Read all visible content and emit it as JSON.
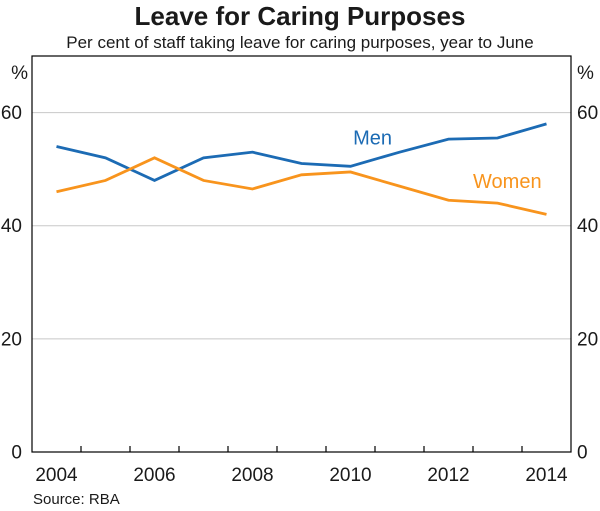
{
  "chart_data": {
    "type": "line",
    "title": "Leave for Caring Purposes",
    "subtitle": "Per cent of staff taking leave for caring purposes, year to June",
    "source": "Source: RBA",
    "unit_label": "%",
    "x": [
      2004,
      2005,
      2006,
      2007,
      2008,
      2009,
      2010,
      2011,
      2012,
      2013,
      2014
    ],
    "xtick_labels": [
      "2004",
      "2006",
      "2008",
      "2010",
      "2012",
      "2014"
    ],
    "series": [
      {
        "name": "Men",
        "color": "#1c6bb4",
        "values": [
          54,
          52,
          48,
          52,
          53,
          51,
          50.5,
          53,
          55.3,
          55.5,
          58
        ],
        "label_at": {
          "x": 2010.45,
          "y": 55.6
        }
      },
      {
        "name": "Women",
        "color": "#f8941d",
        "values": [
          46,
          48,
          52,
          48,
          46.5,
          49,
          49.5,
          47,
          44.5,
          44,
          42
        ],
        "label_at": {
          "x": 2013.2,
          "y": 47.9
        }
      }
    ],
    "ylim": [
      0,
      70
    ],
    "yticks": [
      0,
      20,
      40,
      60
    ],
    "grid": "horizontal gridlines at 20, 40, 60",
    "legend": "none (inline series labels)",
    "colors": {
      "axis": "#000000",
      "gridline": "#c8c8c8",
      "text": "#1a1a1a"
    }
  }
}
